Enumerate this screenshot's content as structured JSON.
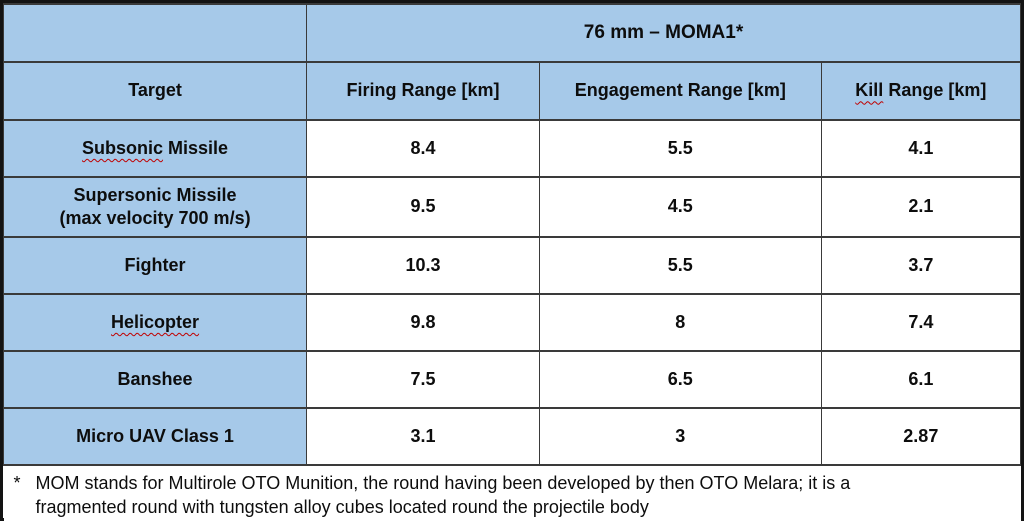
{
  "table": {
    "title": "76 mm – MOMA1*",
    "header": {
      "target": "Target",
      "firing": "Firing Range [km]",
      "engagement": "Engagement Range [km]",
      "kill_word": "Kill",
      "kill_rest": " Range [km]"
    },
    "rows": [
      {
        "target_word": "Subsonic",
        "target_rest": " Missile",
        "firing": "8.4",
        "engagement": "5.5",
        "kill": "4.1"
      },
      {
        "target": "Supersonic Missile\n(max velocity 700 m/s)",
        "firing": "9.5",
        "engagement": "4.5",
        "kill": "2.1"
      },
      {
        "target": "Fighter",
        "firing": "10.3",
        "engagement": "5.5",
        "kill": "3.7"
      },
      {
        "target_word": "Helicopter",
        "target_rest": "",
        "firing": "9.8",
        "engagement": "8",
        "kill": "7.4"
      },
      {
        "target": "Banshee",
        "firing": "7.5",
        "engagement": "6.5",
        "kill": "6.1"
      },
      {
        "target": "Micro UAV Class 1",
        "firing": "3.1",
        "engagement": "3",
        "kill": "2.87"
      }
    ]
  },
  "footnote": {
    "marker": "*",
    "text": "MOM stands for Multirole OTO Munition, the round having been developed by then OTO Melara; it is a\nfragmented round with tungsten alloy cubes located round the projectile body"
  },
  "colors": {
    "header_fill": "#a6c9e9",
    "grid_line": "#3a3a3a",
    "outer_border": "#131313",
    "squiggle": "#c00000",
    "text": "#0d0d0d"
  }
}
